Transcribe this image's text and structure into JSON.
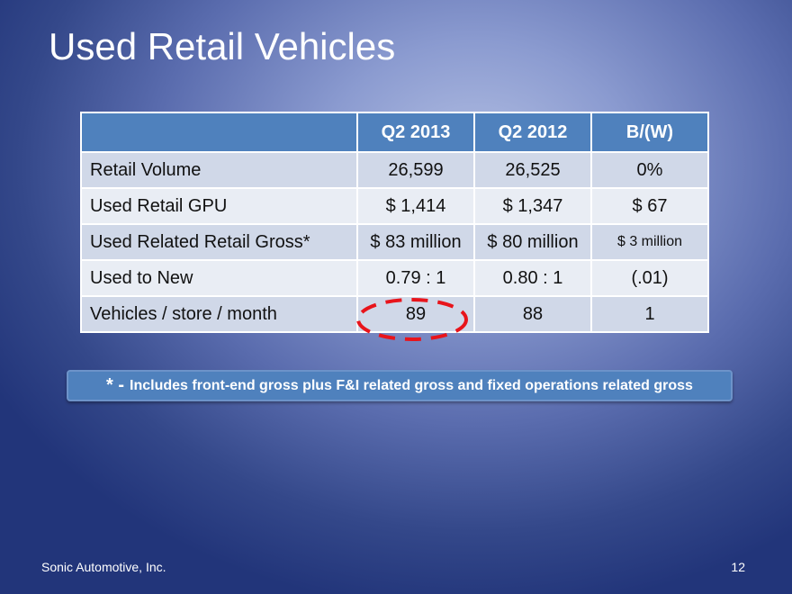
{
  "slide": {
    "title": "Used Retail Vehicles",
    "footer": "Sonic Automotive, Inc.",
    "page_number": "12"
  },
  "table": {
    "headers": [
      "",
      "Q2 2013",
      "Q2 2012",
      "B/(W)"
    ],
    "rows": [
      [
        "Retail Volume",
        "26,599",
        "26,525",
        "0%"
      ],
      [
        "Used Retail GPU",
        "$ 1,414",
        "$ 1,347",
        "$ 67"
      ],
      [
        "Used Related Retail Gross*",
        "$ 83 million",
        "$ 80 million",
        "$ 3 million"
      ],
      [
        "Used to New",
        "0.79 : 1",
        "0.80 : 1",
        "(.01)"
      ],
      [
        "Vehicles / store / month",
        "89",
        "88",
        "1"
      ]
    ]
  },
  "note": {
    "star": "* -",
    "text": "Includes front-end gross plus F&I related gross and fixed operations related gross"
  },
  "colors": {
    "header": "#4f81bd",
    "row_odd": "#d0d8e8",
    "row_even": "#e9edf4",
    "highlight": "#e8141b"
  }
}
